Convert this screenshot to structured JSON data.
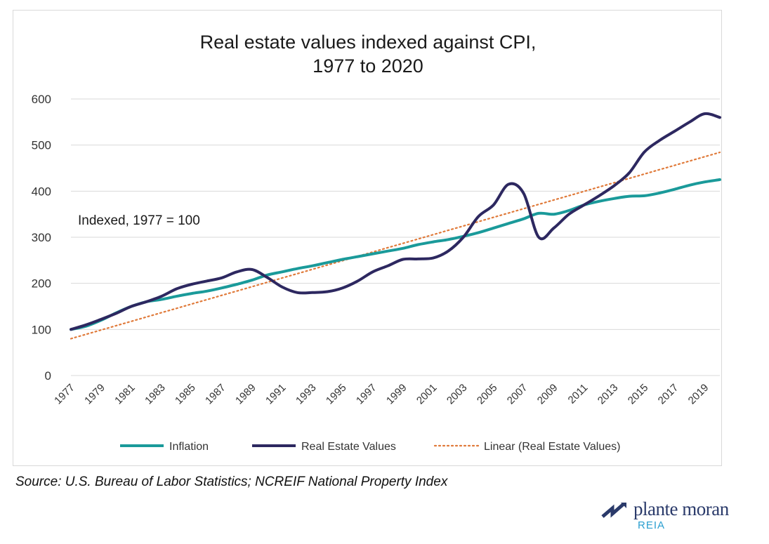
{
  "chart_data": {
    "type": "line",
    "title": [
      "Real estate values indexed against CPI,",
      "1977 to 2020"
    ],
    "annotation": "Indexed, 1977 = 100",
    "x": [
      1977,
      1978,
      1979,
      1980,
      1981,
      1982,
      1983,
      1984,
      1985,
      1986,
      1987,
      1988,
      1989,
      1990,
      1991,
      1992,
      1993,
      1994,
      1995,
      1996,
      1997,
      1998,
      1999,
      2000,
      2001,
      2002,
      2003,
      2004,
      2005,
      2006,
      2007,
      2008,
      2009,
      2010,
      2011,
      2012,
      2013,
      2014,
      2015,
      2016,
      2017,
      2018,
      2019,
      2020
    ],
    "x_tick_labels": [
      "1977",
      "1979",
      "1981",
      "1983",
      "1985",
      "1987",
      "1989",
      "1991",
      "1993",
      "1995",
      "1997",
      "1999",
      "2001",
      "2003",
      "2005",
      "2007",
      "2009",
      "2011",
      "2013",
      "2015",
      "2017",
      "2019"
    ],
    "ylim": [
      0,
      600
    ],
    "y_ticks": [
      "0",
      "100",
      "200",
      "300",
      "400",
      "500",
      "600"
    ],
    "grid": true,
    "legend_position": "bottom",
    "series": [
      {
        "name": "Inflation",
        "color": "#1a9a9a",
        "style": "solid",
        "values": [
          100,
          107,
          120,
          136,
          150,
          160,
          165,
          172,
          178,
          183,
          190,
          198,
          207,
          218,
          225,
          232,
          238,
          245,
          252,
          258,
          264,
          270,
          276,
          284,
          290,
          295,
          302,
          310,
          320,
          330,
          340,
          352,
          350,
          358,
          370,
          378,
          384,
          389,
          390,
          396,
          404,
          413,
          420,
          425
        ]
      },
      {
        "name": "Real Estate Values",
        "color": "#2d2860",
        "style": "solid",
        "values": [
          100,
          110,
          122,
          135,
          150,
          160,
          172,
          188,
          198,
          205,
          212,
          225,
          230,
          213,
          192,
          180,
          180,
          182,
          190,
          205,
          225,
          238,
          252,
          253,
          255,
          270,
          300,
          345,
          370,
          415,
          395,
          300,
          320,
          350,
          370,
          390,
          412,
          440,
          485,
          510,
          530,
          550,
          568,
          560
        ]
      },
      {
        "name": "Linear (Real Estate Values)",
        "color": "#e07a3a",
        "style": "dotted",
        "values": [
          80,
          89.4,
          98.8,
          108.2,
          117.6,
          127,
          136.4,
          145.8,
          155.2,
          164.6,
          174,
          183.4,
          192.8,
          202.2,
          211.6,
          221,
          230.4,
          239.8,
          249.2,
          258.6,
          268,
          277.4,
          286.8,
          296.2,
          305.6,
          315,
          324.4,
          333.8,
          343.2,
          352.6,
          362,
          371.4,
          380.8,
          390.2,
          399.6,
          409,
          418.4,
          427.8,
          437.2,
          446.6,
          456,
          465.4,
          474.8,
          484.2
        ]
      }
    ]
  },
  "source": "Source: U.S. Bureau of Labor Statistics; NCREIF National Property Index",
  "logo": {
    "name": "plante moran",
    "sub": "REIA",
    "color": "#2a3a6a",
    "accent": "#2a9fd0"
  }
}
